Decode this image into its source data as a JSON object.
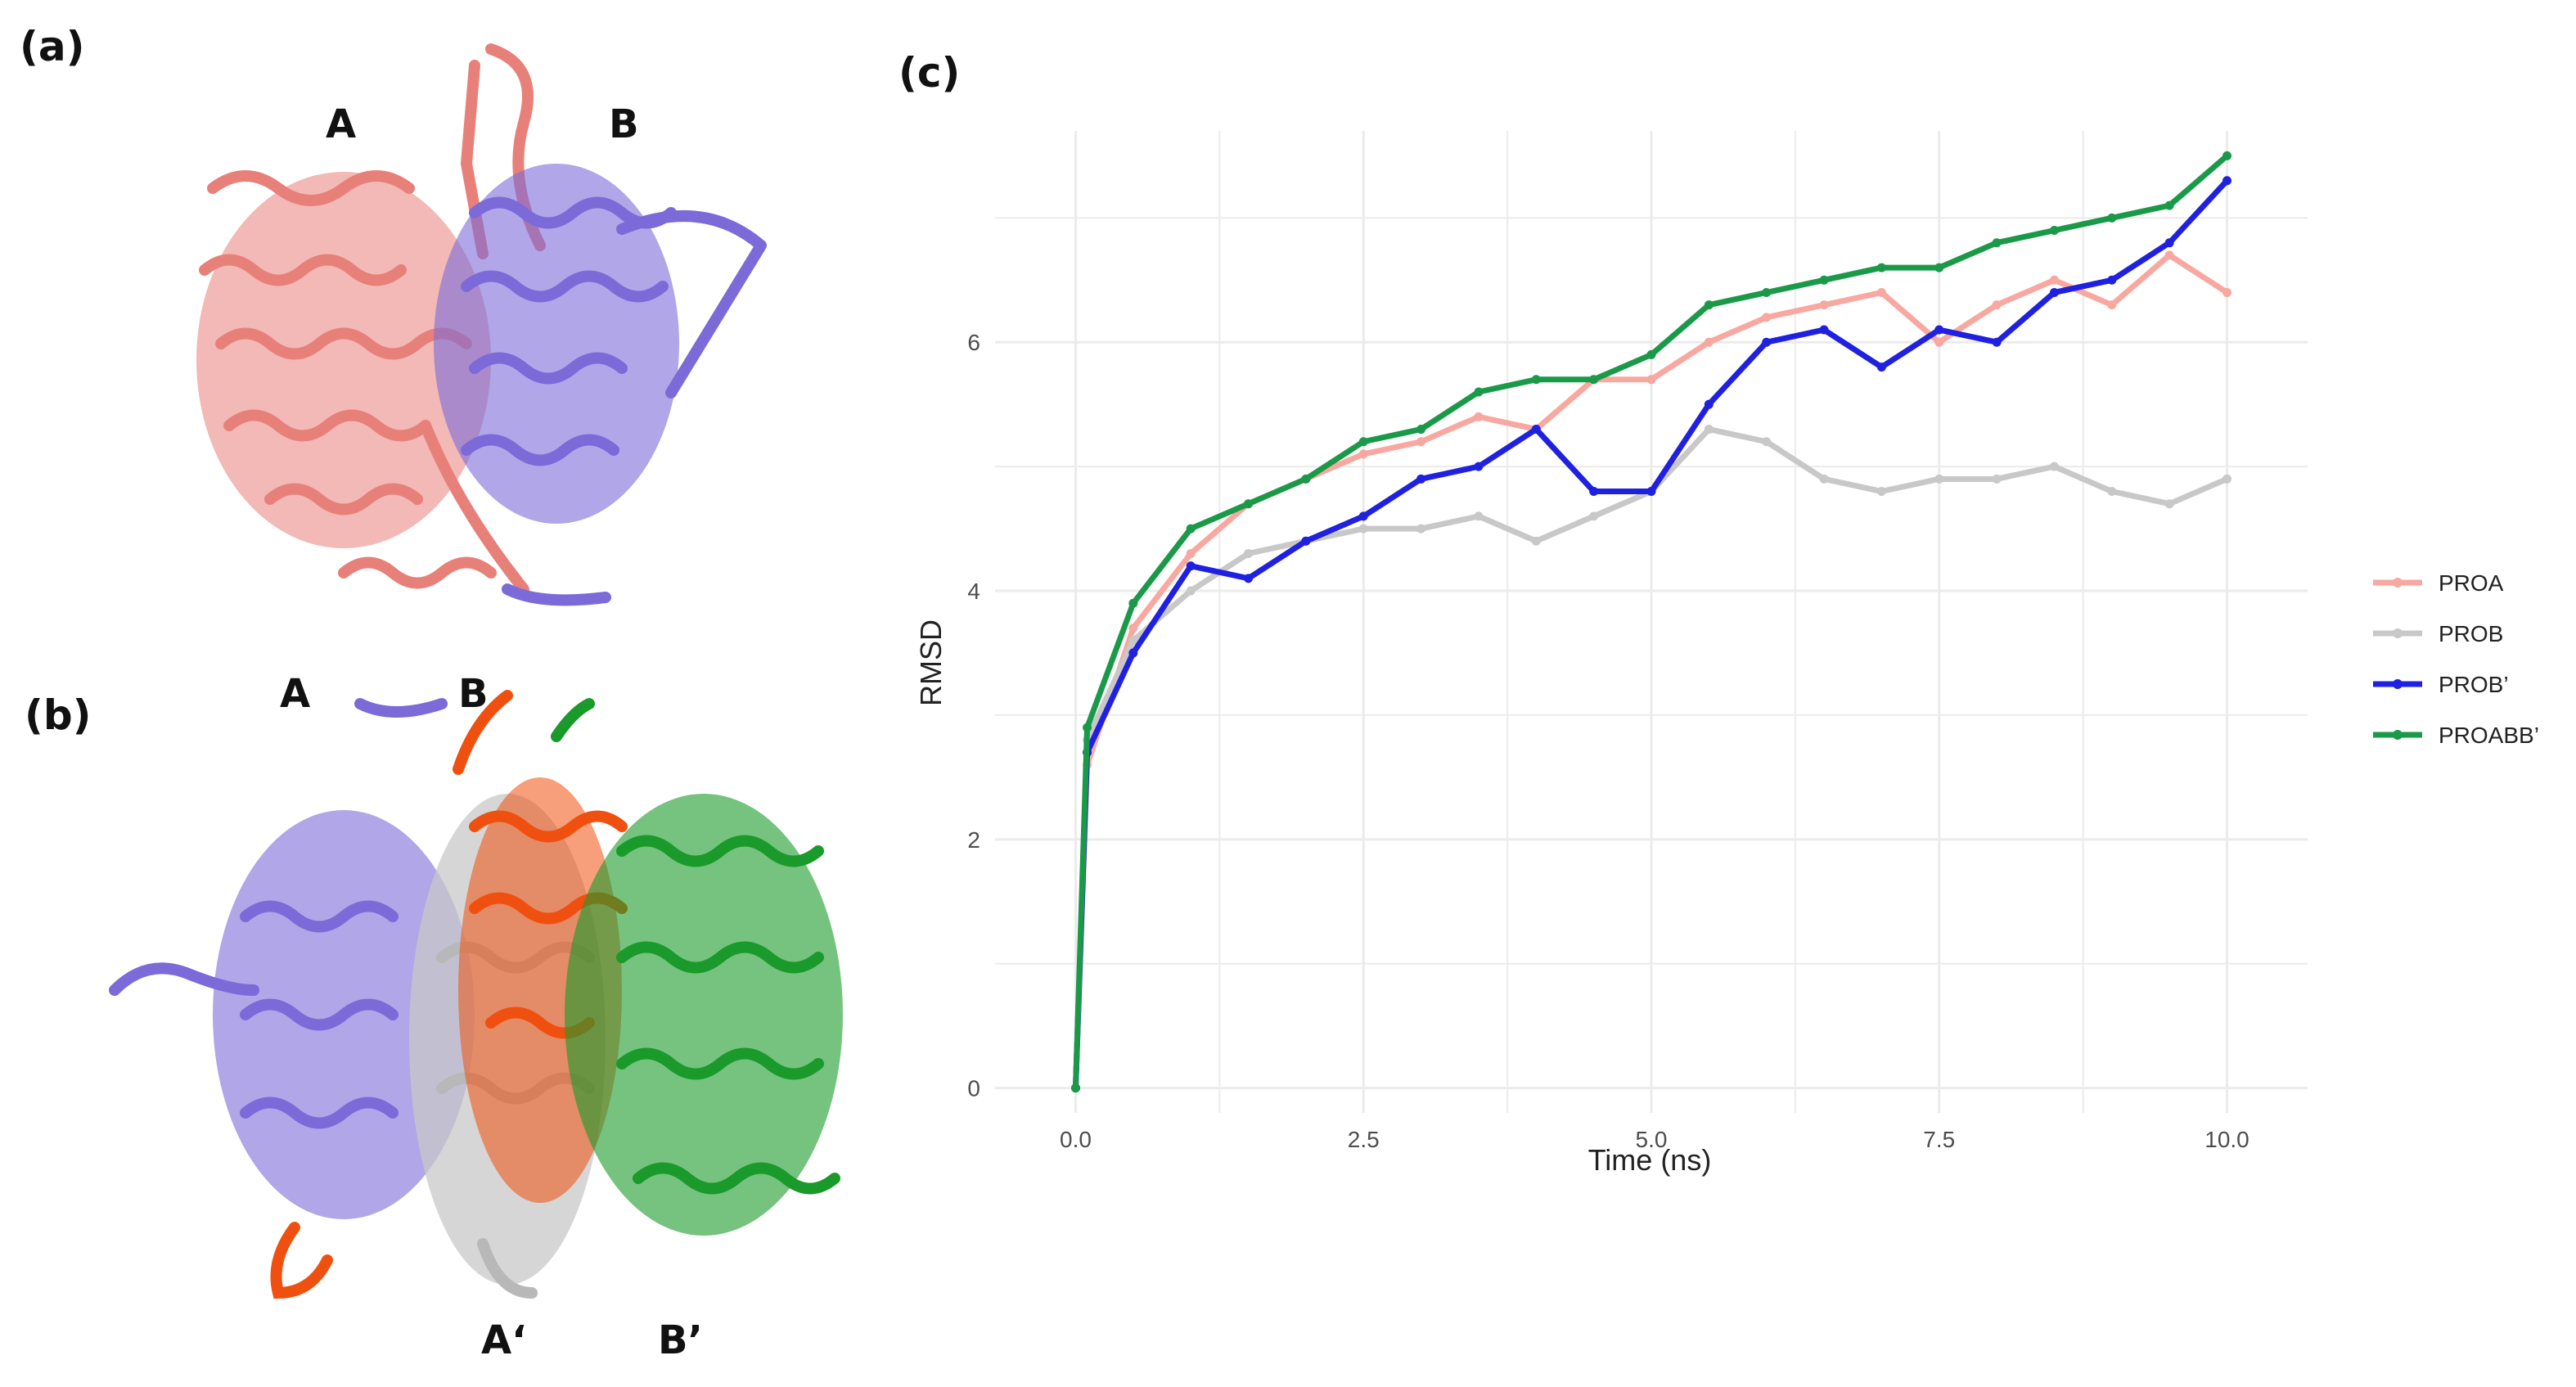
{
  "panels": {
    "a": "(a)",
    "b": "(b)",
    "c": "(c)"
  },
  "structure_a": {
    "chain_1": "A",
    "chain_2": "B"
  },
  "structure_b": {
    "chain_1": "A",
    "chain_2": "B",
    "chain_3": "A‘",
    "chain_4": "B’"
  },
  "colors": {
    "salmon": "#e8807a",
    "purple": "#7c6ad8",
    "orange": "#f0500f",
    "silver": "#c8c8c8",
    "green": "#1a9a2a"
  },
  "chart_data": {
    "type": "line",
    "title": "",
    "xlabel": "Time (ns)",
    "ylabel": "RMSD",
    "xlim": [
      -0.7,
      10.7
    ],
    "ylim": [
      -0.2,
      7.7
    ],
    "xticks": [
      "0.0",
      "2.5",
      "5.0",
      "7.5",
      "10.0"
    ],
    "yticks": [
      "0",
      "2",
      "4",
      "6"
    ],
    "grid": true,
    "legend_position": "right",
    "x": [
      0,
      0.1,
      0.5,
      1,
      1.5,
      2,
      2.5,
      3,
      3.5,
      4,
      4.5,
      5,
      5.5,
      6,
      6.5,
      7,
      7.5,
      8,
      8.5,
      9,
      9.5,
      10
    ],
    "series": [
      {
        "name": "PROA",
        "color": "#f8a8a0",
        "values": [
          0,
          2.6,
          3.7,
          4.3,
          4.7,
          4.9,
          5.1,
          5.2,
          5.4,
          5.3,
          5.7,
          5.7,
          6.0,
          6.2,
          6.3,
          6.4,
          6.0,
          6.3,
          6.5,
          6.3,
          6.7,
          6.4
        ]
      },
      {
        "name": "PROB",
        "color": "#c8c8c8",
        "values": [
          0,
          2.8,
          3.6,
          4.0,
          4.3,
          4.4,
          4.5,
          4.5,
          4.6,
          4.4,
          4.6,
          4.8,
          5.3,
          5.2,
          4.9,
          4.8,
          4.9,
          4.9,
          5.0,
          4.8,
          4.7,
          4.9
        ]
      },
      {
        "name": "PROB’",
        "color": "#2020e0",
        "values": [
          0,
          2.7,
          3.5,
          4.2,
          4.1,
          4.4,
          4.6,
          4.9,
          5.0,
          5.3,
          4.8,
          4.8,
          5.5,
          6.0,
          6.1,
          5.8,
          6.1,
          6.0,
          6.4,
          6.5,
          6.8,
          7.3
        ]
      },
      {
        "name": "PROABB’",
        "color": "#1a9a48",
        "values": [
          0,
          2.9,
          3.9,
          4.5,
          4.7,
          4.9,
          5.2,
          5.3,
          5.6,
          5.7,
          5.7,
          5.9,
          6.3,
          6.4,
          6.5,
          6.6,
          6.6,
          6.8,
          6.9,
          7.0,
          7.1,
          7.5
        ]
      }
    ]
  }
}
